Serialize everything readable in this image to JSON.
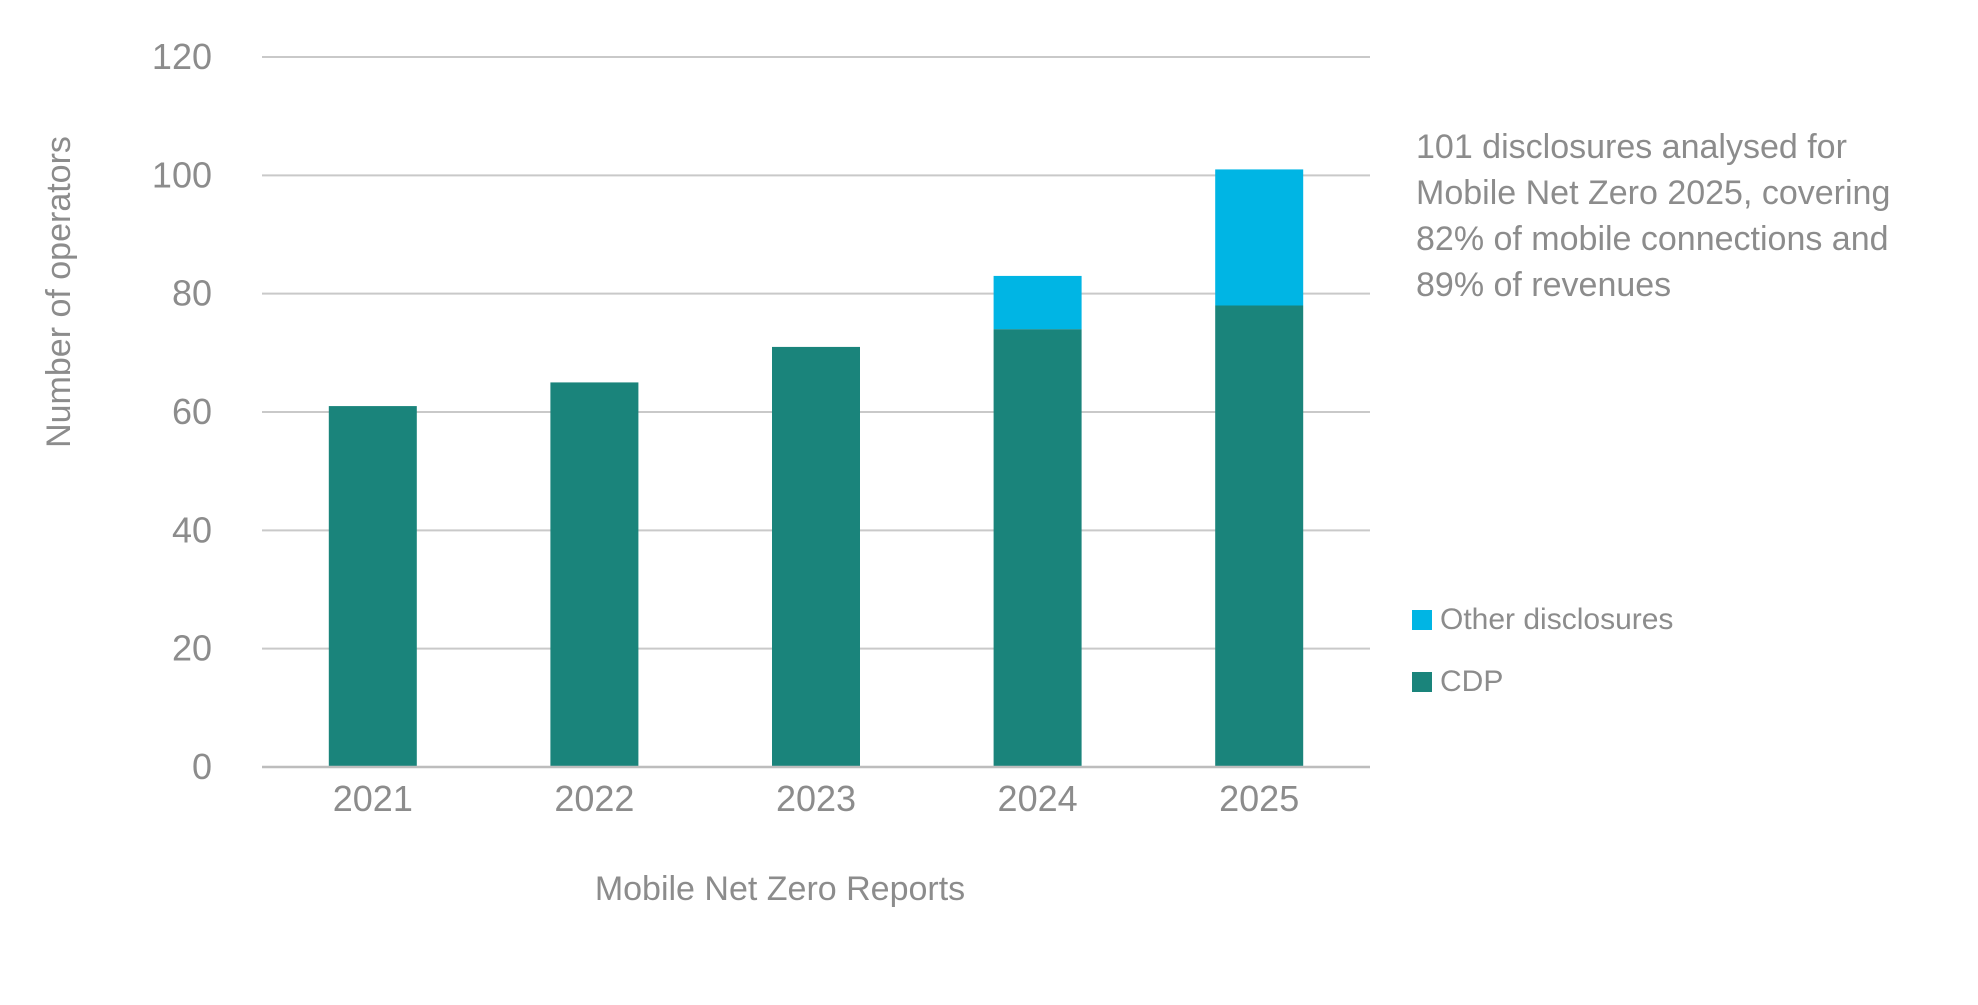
{
  "chart_data": {
    "type": "bar",
    "stacked": true,
    "categories": [
      "2021",
      "2022",
      "2023",
      "2024",
      "2025"
    ],
    "series": [
      {
        "name": "CDP",
        "values": [
          61,
          65,
          71,
          74,
          78
        ],
        "color": "#1a847b"
      },
      {
        "name": "Other disclosures",
        "values": [
          0,
          0,
          0,
          9,
          23
        ],
        "color": "#00b5e4"
      }
    ],
    "xlabel": "Mobile Net Zero Reports",
    "ylabel": "Number of operators",
    "ylim": [
      0,
      120
    ],
    "yticks": [
      0,
      20,
      40,
      60,
      80,
      100,
      120
    ],
    "grid": true,
    "legend_position": "right",
    "annotation": "101 disclosures analysed for\nMobile Net Zero 2025, covering\n82% of mobile connections and\n89% of revenues"
  }
}
